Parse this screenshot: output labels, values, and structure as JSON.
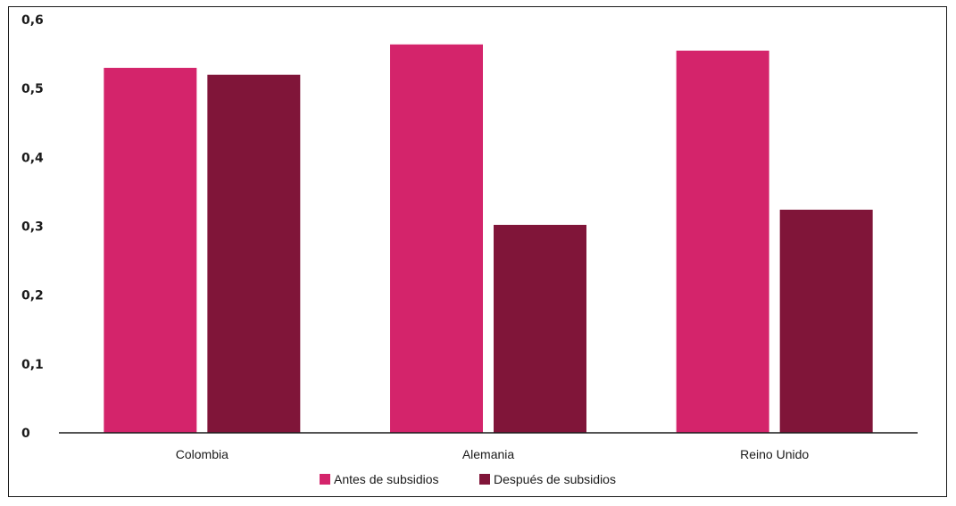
{
  "chart_data": {
    "type": "bar",
    "categories": [
      "Colombia",
      "Alemania",
      "Reino Unido"
    ],
    "series": [
      {
        "name": "Antes de subsidios",
        "values": [
          0.53,
          0.564,
          0.555
        ],
        "color": "#d4246b"
      },
      {
        "name": "Después de subsidios",
        "values": [
          0.52,
          0.302,
          0.324
        ],
        "color": "#801539"
      }
    ],
    "ylim": [
      0,
      0.6
    ],
    "yticks": [
      "0",
      "0,1",
      "0,2",
      "0,3",
      "0,4",
      "0,5",
      "0,6"
    ],
    "grid": false,
    "legend_position": "bottom"
  }
}
